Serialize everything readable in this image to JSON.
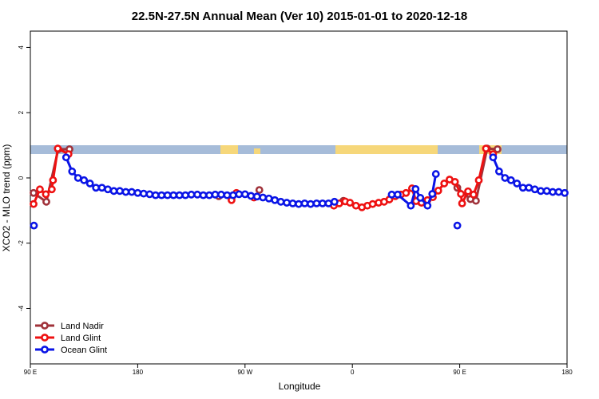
{
  "chart_data": {
    "type": "line",
    "title": "22.5N-27.5N Annual Mean (Ver 10)   2015-01-01 to 2020-12-18",
    "xlabel": "Longitude",
    "ylabel": "XCO2 - MLO trend (ppm)",
    "xlim": [
      90,
      540
    ],
    "ylim": [
      -5.7,
      4.5
    ],
    "xticks": [
      {
        "value": 90,
        "label": "90 E"
      },
      {
        "value": 180,
        "label": "180"
      },
      {
        "value": 270,
        "label": "90 W"
      },
      {
        "value": 360,
        "label": "0"
      },
      {
        "value": 450,
        "label": "90 E"
      },
      {
        "value": 540,
        "label": "180"
      }
    ],
    "yticks": [
      -4,
      -2,
      0,
      2,
      4
    ],
    "legend": "bottom-left",
    "series": [
      {
        "name": "Land Nadir",
        "color": "#a0323a",
        "x": [
          92.7,
          103.4,
          113.4,
          122.8,
          null,
          248,
          null,
          282,
          null,
          352.5,
          null,
          417.5,
          null,
          448,
          459,
          463.6,
          473,
          481.7
        ],
        "values": [
          -0.46,
          -0.73,
          0.88,
          0.88,
          null,
          -0.56,
          null,
          -0.37,
          null,
          -0.7,
          null,
          -0.75,
          null,
          -0.3,
          -0.65,
          -0.7,
          0.9,
          0.88
        ]
      },
      {
        "name": "Land Glint",
        "color": "#ee1111",
        "x": [
          92.7,
          98,
          103,
          108,
          109,
          113,
          122,
          null,
          258.7,
          262.8,
          null,
          277.5,
          null,
          344.5,
          349,
          354,
          358,
          363,
          368,
          372.6,
          377,
          382,
          386.6,
          391,
          396,
          400.7,
          405,
          410,
          413.4,
          418,
          423,
          427.5,
          432,
          437,
          441.5,
          446,
          451,
          452,
          457,
          461.6,
          466,
          472,
          478
        ],
        "values": [
          -0.8,
          -0.35,
          -0.5,
          -0.35,
          -0.07,
          0.9,
          0.73,
          null,
          -0.68,
          -0.46,
          null,
          -0.6,
          null,
          -0.85,
          -0.78,
          -0.72,
          -0.76,
          -0.85,
          -0.9,
          -0.85,
          -0.8,
          -0.76,
          -0.73,
          -0.66,
          -0.56,
          -0.51,
          -0.46,
          -0.32,
          -0.71,
          -0.76,
          -0.68,
          -0.59,
          -0.39,
          -0.17,
          -0.05,
          -0.12,
          -0.49,
          -0.78,
          -0.41,
          -0.51,
          -0.07,
          0.9,
          0.73
        ]
      },
      {
        "name": "Ocean Glint",
        "color": "#0a14e6",
        "x": [
          93,
          null,
          120,
          125,
          130,
          135,
          140,
          145,
          150,
          155,
          160,
          165,
          170,
          175,
          180,
          185,
          190,
          195,
          200,
          205,
          210,
          215,
          220,
          225,
          230,
          235,
          240,
          245,
          250,
          255,
          260,
          265,
          270,
          275,
          280,
          285,
          290,
          295,
          300,
          305,
          310,
          315,
          320,
          325,
          330,
          335,
          340,
          345,
          null,
          393,
          398,
          409,
          413,
          417,
          423,
          427,
          430,
          null,
          448,
          null,
          478,
          483,
          488,
          493,
          498,
          503,
          508,
          513,
          518,
          523,
          528,
          533,
          538
        ],
        "values": [
          -1.46,
          null,
          0.63,
          0.2,
          0,
          -0.07,
          -0.17,
          -0.3,
          -0.3,
          -0.35,
          -0.4,
          -0.4,
          -0.43,
          -0.43,
          -0.46,
          -0.48,
          -0.5,
          -0.53,
          -0.53,
          -0.53,
          -0.53,
          -0.53,
          -0.53,
          -0.51,
          -0.51,
          -0.53,
          -0.53,
          -0.51,
          -0.51,
          -0.53,
          -0.53,
          -0.5,
          -0.5,
          -0.55,
          -0.57,
          -0.6,
          -0.63,
          -0.68,
          -0.73,
          -0.76,
          -0.78,
          -0.8,
          -0.78,
          -0.8,
          -0.78,
          -0.78,
          -0.78,
          -0.73,
          null,
          -0.51,
          -0.51,
          -0.85,
          -0.34,
          -0.61,
          -0.85,
          -0.49,
          0.12,
          null,
          -1.46,
          null,
          0.63,
          0.2,
          0,
          -0.07,
          -0.17,
          -0.3,
          -0.3,
          -0.35,
          -0.4,
          -0.4,
          -0.43,
          -0.43,
          -0.46
        ]
      }
    ]
  }
}
